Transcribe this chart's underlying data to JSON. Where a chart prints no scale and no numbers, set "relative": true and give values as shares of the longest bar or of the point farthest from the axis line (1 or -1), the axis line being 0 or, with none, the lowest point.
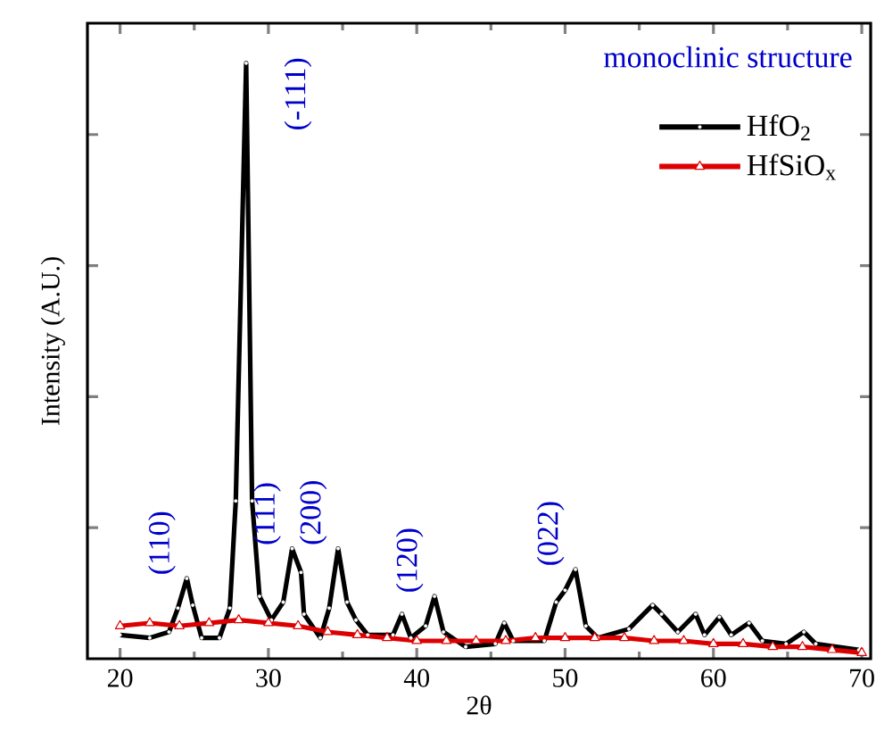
{
  "chart_data": {
    "type": "line",
    "xlabel": "2θ",
    "ylabel": "Intensity (A.U.)",
    "relative": true,
    "xlim": [
      17.8,
      70.6
    ],
    "xticks": [
      20,
      30,
      40,
      50,
      60,
      70
    ],
    "legend": "top right",
    "line_style": "solid",
    "annotations": [
      "monoclinic structure",
      {
        "text": "(110)",
        "x": 24.5,
        "y": 0.135
      },
      {
        "text": "(-111)",
        "x": 28.5,
        "y": 1.0
      },
      {
        "text": "(111)",
        "x": 31.6,
        "y": 0.185
      },
      {
        "text": "(200)",
        "x": 34.7,
        "y": 0.185
      },
      {
        "text": "(120)",
        "x": 41.2,
        "y": 0.105
      },
      {
        "text": "(022)",
        "x": 50.7,
        "y": 0.15
      }
    ],
    "series": [
      {
        "name": "HfO$_{2}$",
        "color": "#000000",
        "marker": "circle",
        "x": [
          20,
          22,
          23.3,
          23.9,
          24.5,
          24.9,
          25.5,
          26.7,
          27.4,
          27.8,
          28.5,
          28.9,
          29.4,
          30.2,
          31.0,
          31.6,
          32.2,
          32.4,
          33.5,
          34.1,
          34.7,
          35.3,
          35.9,
          36.7,
          38.4,
          39.0,
          39.6,
          40.6,
          41.2,
          41.8,
          43.3,
          45.3,
          45.9,
          46.5,
          48.6,
          49.4,
          50.0,
          50.7,
          51.4,
          52.2,
          54.3,
          55.9,
          56.5,
          57.6,
          58.8,
          59.4,
          60.4,
          61.2,
          62.4,
          63.3,
          64.9,
          66.1,
          66.9,
          69.8
        ],
        "values": [
          0.04,
          0.035,
          0.045,
          0.085,
          0.135,
          0.09,
          0.035,
          0.035,
          0.085,
          0.265,
          1.0,
          0.265,
          0.105,
          0.065,
          0.095,
          0.185,
          0.145,
          0.075,
          0.035,
          0.085,
          0.185,
          0.095,
          0.065,
          0.04,
          0.04,
          0.075,
          0.035,
          0.055,
          0.105,
          0.045,
          0.02,
          0.025,
          0.06,
          0.03,
          0.03,
          0.095,
          0.115,
          0.15,
          0.055,
          0.035,
          0.05,
          0.09,
          0.075,
          0.045,
          0.075,
          0.04,
          0.07,
          0.04,
          0.06,
          0.03,
          0.025,
          0.045,
          0.025,
          0.015
        ]
      },
      {
        "name": "HfSiO$_{x}$",
        "color": "#dd0000",
        "marker": "triangle",
        "x": [
          20,
          22,
          24,
          26,
          28,
          30,
          32,
          34,
          36,
          38,
          40,
          42,
          44,
          46,
          48,
          50,
          52,
          54,
          56,
          58,
          60,
          62,
          64,
          66,
          68,
          70
        ],
        "values": [
          0.055,
          0.06,
          0.055,
          0.06,
          0.065,
          0.06,
          0.055,
          0.045,
          0.04,
          0.035,
          0.03,
          0.03,
          0.03,
          0.03,
          0.035,
          0.035,
          0.035,
          0.035,
          0.03,
          0.03,
          0.025,
          0.025,
          0.02,
          0.02,
          0.015,
          0.01
        ]
      }
    ]
  }
}
